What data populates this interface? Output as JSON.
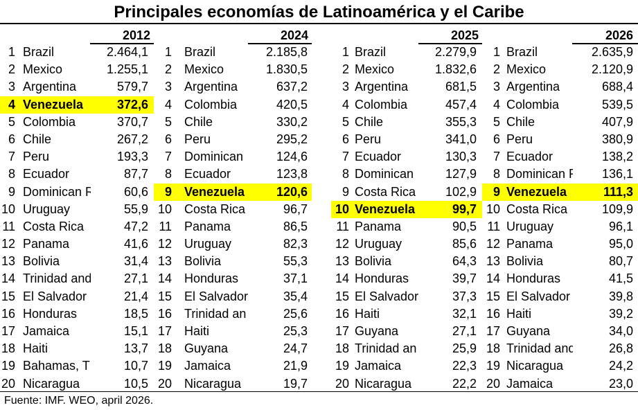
{
  "title": "Principales economías de Latinoamérica y el Caribe",
  "source": "Fuente: IMF. WEO, april 2026.",
  "colors": {
    "highlight": "#ffff00",
    "text": "#000000"
  },
  "columns": [
    {
      "year": "2012",
      "rows": [
        {
          "rank": "1",
          "name": "Brazil",
          "value": "2.464,1"
        },
        {
          "rank": "2",
          "name": "Mexico",
          "value": "1.255,1"
        },
        {
          "rank": "3",
          "name": "Argentina",
          "value": "579,7"
        },
        {
          "rank": "4",
          "name": "Venezuela",
          "value": "372,6",
          "highlight": true
        },
        {
          "rank": "5",
          "name": "Colombia",
          "value": "370,7"
        },
        {
          "rank": "6",
          "name": "Chile",
          "value": "267,2"
        },
        {
          "rank": "7",
          "name": "Peru",
          "value": "193,3"
        },
        {
          "rank": "8",
          "name": "Ecuador",
          "value": "87,7"
        },
        {
          "rank": "9",
          "name": "Dominican R",
          "value": "60,6"
        },
        {
          "rank": "10",
          "name": "Uruguay",
          "value": "55,9"
        },
        {
          "rank": "11",
          "name": "Costa Rica",
          "value": "47,2"
        },
        {
          "rank": "12",
          "name": "Panama",
          "value": "41,6"
        },
        {
          "rank": "13",
          "name": "Bolivia",
          "value": "31,4"
        },
        {
          "rank": "14",
          "name": "Trinidad and",
          "value": "27,1"
        },
        {
          "rank": "15",
          "name": "El Salvador",
          "value": "21,4"
        },
        {
          "rank": "16",
          "name": "Honduras",
          "value": "18,5"
        },
        {
          "rank": "17",
          "name": "Jamaica",
          "value": "15,1"
        },
        {
          "rank": "18",
          "name": "Haiti",
          "value": "13,7"
        },
        {
          "rank": "19",
          "name": "Bahamas, T",
          "value": "10,7"
        },
        {
          "rank": "20",
          "name": "Nicaragua",
          "value": "10,5"
        }
      ]
    },
    {
      "year": "2024",
      "rows": [
        {
          "rank": "1",
          "name": "Brazil",
          "value": "2.185,8"
        },
        {
          "rank": "2",
          "name": "Mexico",
          "value": "1.830,5"
        },
        {
          "rank": "3",
          "name": "Argentina",
          "value": "637,2"
        },
        {
          "rank": "4",
          "name": "Colombia",
          "value": "420,5"
        },
        {
          "rank": "5",
          "name": "Chile",
          "value": "330,2"
        },
        {
          "rank": "6",
          "name": "Peru",
          "value": "295,2"
        },
        {
          "rank": "7",
          "name": "Dominican",
          "value": "124,6"
        },
        {
          "rank": "8",
          "name": "Ecuador",
          "value": "123,8"
        },
        {
          "rank": "9",
          "name": "Venezuela",
          "value": "120,6",
          "highlight": true
        },
        {
          "rank": "10",
          "name": "Costa Rica",
          "value": "96,7"
        },
        {
          "rank": "11",
          "name": "Panama",
          "value": "86,5"
        },
        {
          "rank": "12",
          "name": "Uruguay",
          "value": "82,3"
        },
        {
          "rank": "13",
          "name": "Bolivia",
          "value": "55,3"
        },
        {
          "rank": "14",
          "name": "Honduras",
          "value": "37,1"
        },
        {
          "rank": "15",
          "name": "El Salvador",
          "value": "35,4"
        },
        {
          "rank": "16",
          "name": "Trinidad an",
          "value": "25,6"
        },
        {
          "rank": "17",
          "name": "Haiti",
          "value": "25,3"
        },
        {
          "rank": "18",
          "name": "Guyana",
          "value": "24,7"
        },
        {
          "rank": "19",
          "name": "Jamaica",
          "value": "21,9"
        },
        {
          "rank": "20",
          "name": "Nicaragua",
          "value": "19,7"
        }
      ]
    },
    {
      "year": "2025",
      "rows": [
        {
          "rank": "1",
          "name": "Brazil",
          "value": "2.279,9"
        },
        {
          "rank": "2",
          "name": "Mexico",
          "value": "1.832,6"
        },
        {
          "rank": "3",
          "name": "Argentina",
          "value": "681,5"
        },
        {
          "rank": "4",
          "name": "Colombia",
          "value": "457,4"
        },
        {
          "rank": "5",
          "name": "Chile",
          "value": "355,3"
        },
        {
          "rank": "6",
          "name": "Peru",
          "value": "341,0"
        },
        {
          "rank": "7",
          "name": "Ecuador",
          "value": "130,3"
        },
        {
          "rank": "8",
          "name": "Dominican",
          "value": "127,9"
        },
        {
          "rank": "9",
          "name": "Costa Rica",
          "value": "102,9"
        },
        {
          "rank": "10",
          "name": "Venezuela",
          "value": "99,7",
          "highlight": true
        },
        {
          "rank": "11",
          "name": "Panama",
          "value": "90,5"
        },
        {
          "rank": "12",
          "name": "Uruguay",
          "value": "85,6"
        },
        {
          "rank": "13",
          "name": "Bolivia",
          "value": "64,3"
        },
        {
          "rank": "14",
          "name": "Honduras",
          "value": "39,7"
        },
        {
          "rank": "15",
          "name": "El Salvador",
          "value": "37,3"
        },
        {
          "rank": "16",
          "name": "Haiti",
          "value": "32,1"
        },
        {
          "rank": "17",
          "name": "Guyana",
          "value": "27,1"
        },
        {
          "rank": "18",
          "name": "Trinidad an",
          "value": "25,9"
        },
        {
          "rank": "19",
          "name": "Jamaica",
          "value": "22,3"
        },
        {
          "rank": "20",
          "name": "Nicaragua",
          "value": "22,2"
        }
      ]
    },
    {
      "year": "2026",
      "rows": [
        {
          "rank": "1",
          "name": "Brazil",
          "value": "2.635,9"
        },
        {
          "rank": "2",
          "name": "Mexico",
          "value": "2.120,9"
        },
        {
          "rank": "3",
          "name": "Argentina",
          "value": "688,4"
        },
        {
          "rank": "4",
          "name": "Colombia",
          "value": "539,5"
        },
        {
          "rank": "5",
          "name": "Chile",
          "value": "407,9"
        },
        {
          "rank": "6",
          "name": "Peru",
          "value": "380,9"
        },
        {
          "rank": "7",
          "name": "Ecuador",
          "value": "138,2"
        },
        {
          "rank": "8",
          "name": "Dominican R",
          "value": "136,1"
        },
        {
          "rank": "9",
          "name": "Venezuela",
          "value": "111,3",
          "highlight": true
        },
        {
          "rank": "10",
          "name": "Costa Rica",
          "value": "109,9"
        },
        {
          "rank": "11",
          "name": "Uruguay",
          "value": "96,1"
        },
        {
          "rank": "12",
          "name": "Panama",
          "value": "95,0"
        },
        {
          "rank": "13",
          "name": "Bolivia",
          "value": "80,7"
        },
        {
          "rank": "14",
          "name": "Honduras",
          "value": "41,5"
        },
        {
          "rank": "15",
          "name": "El Salvador",
          "value": "39,8"
        },
        {
          "rank": "16",
          "name": "Haiti",
          "value": "39,2"
        },
        {
          "rank": "17",
          "name": "Guyana",
          "value": "34,0"
        },
        {
          "rank": "18",
          "name": "Trinidad and",
          "value": "26,8"
        },
        {
          "rank": "19",
          "name": "Nicaragua",
          "value": "24,2"
        },
        {
          "rank": "20",
          "name": "Jamaica",
          "value": "23,0"
        }
      ]
    }
  ]
}
